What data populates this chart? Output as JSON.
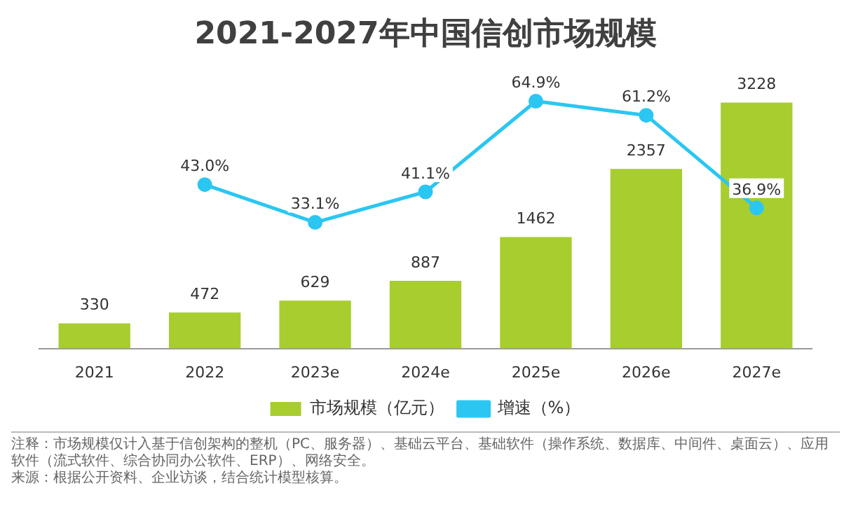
{
  "chart_data": {
    "type": "bar",
    "title": "2021-2027年中国信创市场规模",
    "categories": [
      "2021",
      "2022",
      "2023e",
      "2024e",
      "2025e",
      "2026e",
      "2027e"
    ],
    "series": [
      {
        "name": "市场规模（亿元）",
        "color": "#a7cd2f",
        "values": [
          330,
          472,
          629,
          887,
          1462,
          2357,
          3228
        ]
      },
      {
        "name": "增速（%）",
        "type": "line",
        "axis": "y2",
        "color": "#2bc6f2",
        "marker": "circle",
        "values": [
          null,
          43.0,
          33.1,
          41.1,
          64.9,
          61.2,
          36.9
        ],
        "value_labels": [
          null,
          "43.0%",
          "33.1%",
          "41.1%",
          "64.9%",
          "61.2%",
          "36.9%"
        ]
      }
    ],
    "tick_labels": "x",
    "grid": false,
    "legend": "bottom",
    "data_labels": true,
    "annotations": [
      "注释：市场规模仅计入基于信创架构的整机（PC、服务器）、基础云平台、基础软件（操作系统、数据库、中间件、桌面云）、应用软件（流式软件、综合协同办公软件、ERP）、网络安全。",
      "来源：根据公开资料、企业访谈，结合统计模型核算。"
    ]
  }
}
